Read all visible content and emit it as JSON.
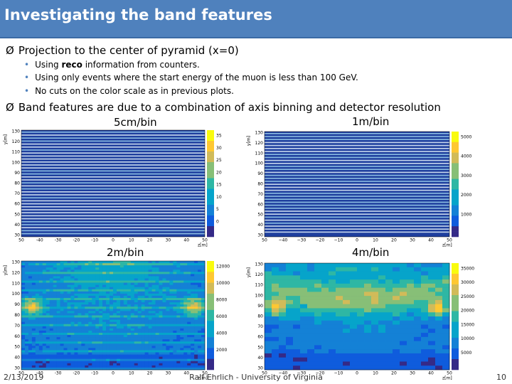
{
  "header": {
    "title": "Investigating the band features"
  },
  "bullets": [
    {
      "text": "Projection to the center of pyramid (x=0)",
      "sub": [
        {
          "parts": [
            "Using ",
            "reco",
            " information from counters."
          ]
        },
        {
          "parts": [
            "Using only events where the start energy of the muon is less than 100 GeV."
          ]
        },
        {
          "parts": [
            "No cuts on the color scale as in previous plots."
          ]
        }
      ]
    },
    {
      "text": "Band features are due to a combination of axis binning and detector resolution",
      "sub": []
    }
  ],
  "panels": [
    {
      "label": "5cm/bin",
      "y_label": "y[m]",
      "x_label": "z[m]",
      "yticks": [
        "130",
        "120",
        "110",
        "100",
        "90",
        "80",
        "70",
        "60",
        "50",
        "40",
        "30"
      ],
      "xticks": [
        "50",
        "-40",
        "-30",
        "-20",
        "-10",
        "0",
        "10",
        "20",
        "30",
        "40",
        "50"
      ],
      "cticks": [
        "35",
        "30",
        "25",
        "20",
        "15",
        "10",
        "5",
        "0"
      ]
    },
    {
      "label": "1m/bin",
      "y_label": "y[m]",
      "x_label": "z[m]",
      "yticks": [
        "130",
        "120",
        "110",
        "100",
        "90",
        "80",
        "70",
        "60",
        "50",
        "40",
        "30"
      ],
      "xticks": [
        "50",
        "−40",
        "−30",
        "−20",
        "−10",
        "0",
        "10",
        "20",
        "30",
        "40",
        "50"
      ],
      "cticks": [
        "5000",
        "4000",
        "3000",
        "2000",
        "1000"
      ]
    },
    {
      "label": "2m/bin",
      "y_label": "y[m]",
      "x_label": "z[m]",
      "yticks": [
        "130",
        "120",
        "110",
        "100",
        "90",
        "80",
        "70",
        "60",
        "50",
        "40",
        "30"
      ],
      "xticks": [
        "50",
        "-40",
        "-30",
        "-20",
        "-10",
        "0",
        "10",
        "20",
        "30",
        "40",
        "50"
      ],
      "cticks": [
        "12000",
        "10000",
        "8000",
        "6000",
        "4000",
        "2000"
      ]
    },
    {
      "label": "4m/bin",
      "y_label": "y[m]",
      "x_label": "z[m]",
      "yticks": [
        "130",
        "120",
        "110",
        "100",
        "90",
        "80",
        "70",
        "60",
        "50",
        "40",
        "30"
      ],
      "xticks": [
        "50",
        "−40",
        "−30",
        "−20",
        "−10",
        "0",
        "10",
        "20",
        "30",
        "40",
        "50"
      ],
      "cticks": [
        "35000",
        "30000",
        "25000",
        "20000",
        "15000",
        "10000",
        "5000"
      ]
    }
  ],
  "footer": {
    "date": "2/13/2019",
    "author": "Ralf Ehrlich - University of Virginia",
    "page": "10"
  }
}
